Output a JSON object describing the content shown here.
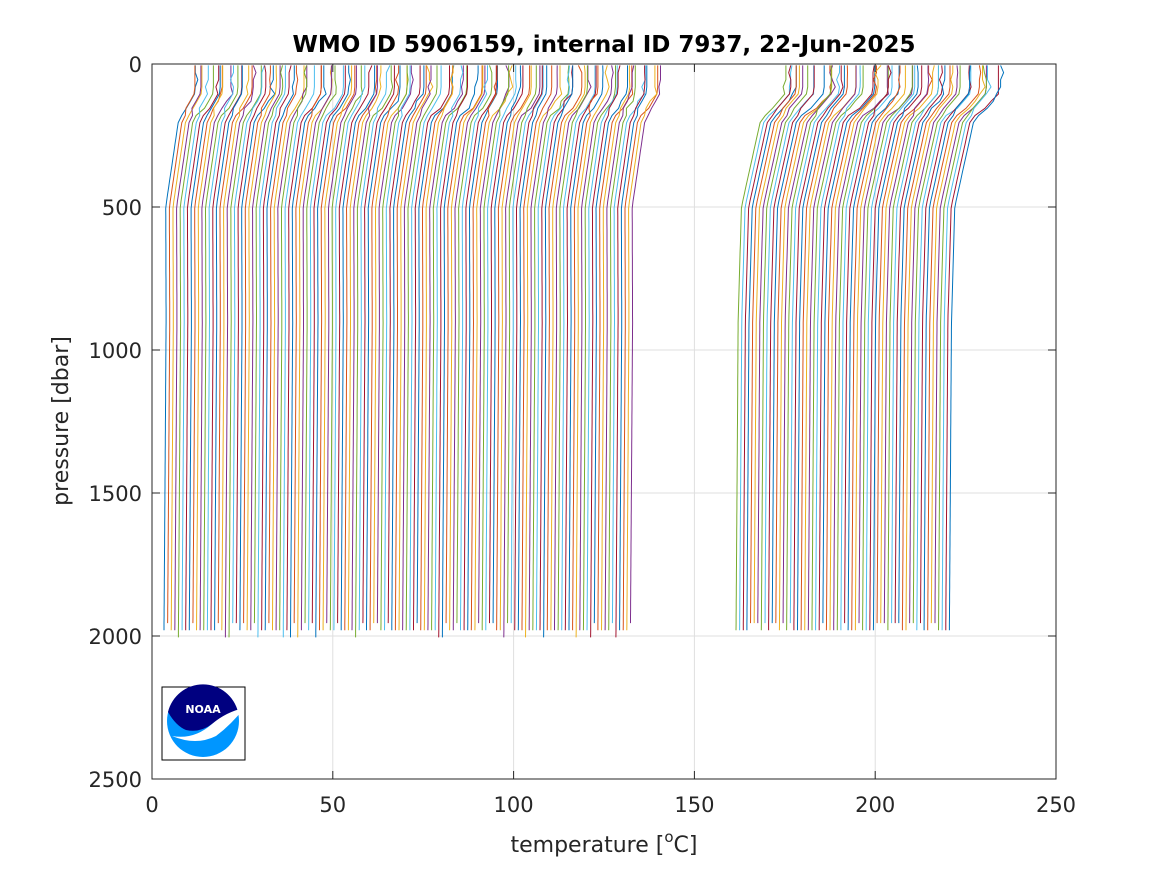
{
  "chart_data": {
    "type": "line",
    "title": "WMO ID 5906159, internal ID 7937, 22-Jun-2025",
    "xlabel": "temperature [",
    "xlabel_sup": "o",
    "xlabel_suffix": "C]",
    "ylabel": "pressure [dbar]",
    "xlim": [
      0,
      250
    ],
    "ylim": [
      0,
      2500
    ],
    "y_reversed": true,
    "grid": true,
    "x_ticks": [
      0,
      50,
      100,
      150,
      200,
      250
    ],
    "y_ticks": [
      0,
      500,
      1000,
      1500,
      2000,
      2500
    ],
    "x_tick_labels": [
      "0",
      "50",
      "100",
      "150",
      "200",
      "250"
    ],
    "y_tick_labels": [
      "0",
      "500",
      "1000",
      "1500",
      "2000",
      "2500"
    ],
    "series_description": "Waterfall of temperature profiles, each profile offset along the temperature axis",
    "group_a": {
      "count": 130,
      "x_start": 3.3,
      "x_step": 1.0,
      "surface_offset": 10,
      "deep_value": 1.5,
      "max_pressure": 2010
    },
    "group_b": {
      "count": 60,
      "x_start": 161.5,
      "x_step": 1.0,
      "surface_offset": 15,
      "deep_value": 1.5,
      "max_pressure": 2000
    },
    "colors": [
      "#0072bd",
      "#d95319",
      "#edb120",
      "#7e2f8e",
      "#77ac30",
      "#4dbeee",
      "#a2142f"
    ]
  },
  "logo": {
    "text": "NOAA",
    "colors": {
      "navy": "#000080",
      "sky": "#0096ff",
      "white": "#ffffff"
    }
  }
}
